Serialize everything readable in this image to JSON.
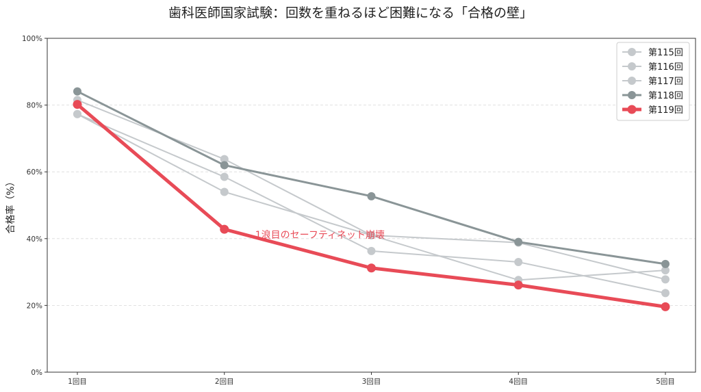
{
  "chart_data": {
    "type": "line",
    "title": "歯科医師国家試験：回数を重ねるほど困難になる「合格の壁」",
    "xlabel": "",
    "ylabel": "合格率（%）",
    "categories": [
      "1回目",
      "2回目",
      "3回目",
      "4回目",
      "5回目"
    ],
    "ylim": [
      0,
      100
    ],
    "yticks": [
      "0%",
      "20%",
      "40%",
      "60%",
      "80%",
      "100%"
    ],
    "ytick_values": [
      0,
      20,
      40,
      60,
      80,
      100
    ],
    "grid": "horizontal dashed",
    "legend_position": "top-right",
    "series": [
      {
        "name": "第115回",
        "values": [
          81.5,
          63.8,
          41.0,
          38.8,
          27.8
        ],
        "color": "#c5c9cc",
        "emphasis": "normal"
      },
      {
        "name": "第116回",
        "values": [
          77.3,
          58.5,
          36.3,
          33.0,
          23.7
        ],
        "color": "#c5c9cc",
        "emphasis": "normal"
      },
      {
        "name": "第117回",
        "values": [
          77.3,
          54.0,
          41.0,
          27.6,
          30.5
        ],
        "color": "#c5c9cc",
        "emphasis": "normal"
      },
      {
        "name": "第118回",
        "values": [
          84.1,
          62.0,
          52.7,
          39.0,
          32.4
        ],
        "color": "#8a9597",
        "emphasis": "medium"
      },
      {
        "name": "第119回",
        "values": [
          80.2,
          42.8,
          31.2,
          26.1,
          19.6
        ],
        "color": "#e84b57",
        "emphasis": "strong"
      }
    ],
    "annotations": [
      {
        "text": "1浪目のセーフティネット崩壊",
        "x": "2回目",
        "y": 42.8,
        "color": "#e84b57"
      }
    ]
  }
}
